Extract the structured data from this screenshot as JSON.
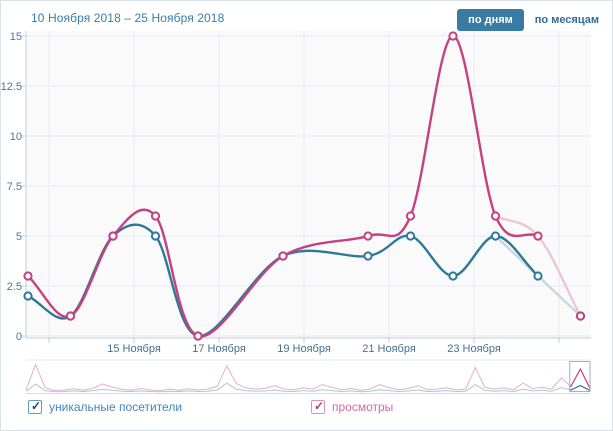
{
  "header": {
    "date_range": "10 Ноября 2018 – 25 Ноября 2018",
    "by_days_label": "по дням",
    "by_months_label": "по месяцам",
    "active_mode": "по дням"
  },
  "legend": {
    "items": [
      {
        "label": "уникальные посетители",
        "checked": true,
        "check_glyph": "✓",
        "color": "#2e7898"
      },
      {
        "label": "просмотры",
        "checked": true,
        "check_glyph": "✓",
        "color": "#c5417f"
      }
    ]
  },
  "chart_data": {
    "type": "line",
    "smooth": true,
    "grid": true,
    "ylim": [
      0,
      15
    ],
    "y_ticks": [
      "15",
      "12.5",
      "10",
      "7.5",
      "5",
      "2.5",
      "0"
    ],
    "x_axis_labels": [
      "15 Ноября",
      "17 Ноября",
      "19 Ноября",
      "21 Ноября",
      "23 Ноября"
    ],
    "x_slot_count": 14,
    "series": [
      {
        "name": "просмотры",
        "color": "#c5417f",
        "faded_color": "#ecc6d8",
        "last_segment_faded": true,
        "points": [
          [
            0,
            3
          ],
          [
            1,
            1
          ],
          [
            2,
            5
          ],
          [
            3,
            6
          ],
          [
            4,
            0
          ],
          [
            6,
            4
          ],
          [
            8,
            5
          ],
          [
            9,
            6
          ],
          [
            10,
            15
          ],
          [
            11,
            6
          ],
          [
            12,
            5
          ],
          [
            13,
            1
          ]
        ]
      },
      {
        "name": "уникальные посетители",
        "color": "#2e7898",
        "faded_color": "#c6d7e0",
        "last_segment_faded": true,
        "points": [
          [
            0,
            2
          ],
          [
            1,
            1
          ],
          [
            2,
            5
          ],
          [
            3,
            5
          ],
          [
            4,
            0
          ],
          [
            6,
            4
          ],
          [
            8,
            4
          ],
          [
            9,
            5
          ],
          [
            10,
            3
          ],
          [
            11,
            5
          ],
          [
            12,
            3
          ],
          [
            13,
            1
          ]
        ]
      }
    ],
    "overview": {
      "views_color_light": "#e6afc8",
      "visitors_color_light": "#abc7d5",
      "views": [
        0.1,
        0.95,
        0.18,
        0.08,
        0.1,
        0.14,
        0.09,
        0.16,
        0.3,
        0.2,
        0.12,
        0.09,
        0.15,
        0.1,
        0.08,
        0.13,
        0.09,
        0.14,
        0.1,
        0.13,
        0.22,
        0.9,
        0.32,
        0.17,
        0.13,
        0.15,
        0.24,
        0.13,
        0.11,
        0.17,
        0.13,
        0.28,
        0.19,
        0.11,
        0.15,
        0.09,
        0.13,
        0.28,
        0.17,
        0.11,
        0.15,
        0.24,
        0.11,
        0.13,
        0.17,
        0.11,
        0.13,
        0.85,
        0.19,
        0.13,
        0.17,
        0.11,
        0.33,
        0.15,
        0.19,
        0.13,
        0.5,
        0.22,
        0.8,
        0.15
      ],
      "visitors": [
        0.05,
        0.3,
        0.08,
        0.04,
        0.05,
        0.07,
        0.05,
        0.08,
        0.12,
        0.09,
        0.06,
        0.05,
        0.07,
        0.05,
        0.04,
        0.06,
        0.05,
        0.07,
        0.05,
        0.06,
        0.1,
        0.33,
        0.13,
        0.08,
        0.06,
        0.07,
        0.1,
        0.06,
        0.05,
        0.08,
        0.06,
        0.11,
        0.08,
        0.05,
        0.07,
        0.04,
        0.06,
        0.11,
        0.08,
        0.05,
        0.07,
        0.1,
        0.05,
        0.06,
        0.08,
        0.05,
        0.06,
        0.28,
        0.09,
        0.06,
        0.08,
        0.05,
        0.13,
        0.07,
        0.09,
        0.06,
        0.18,
        0.1,
        0.25,
        0.08
      ],
      "selection": {
        "start_fraction": 0.964,
        "end_fraction": 1.0
      }
    },
    "colors": {
      "plot_bg": "#fafafb",
      "grid": "#e9ebf1",
      "axis": "#c2cfda",
      "tick_label": "#4a789d",
      "x_label": "#47708e",
      "selection_border": "#9ab3c6",
      "accent_button": "#3a7ba4"
    }
  }
}
